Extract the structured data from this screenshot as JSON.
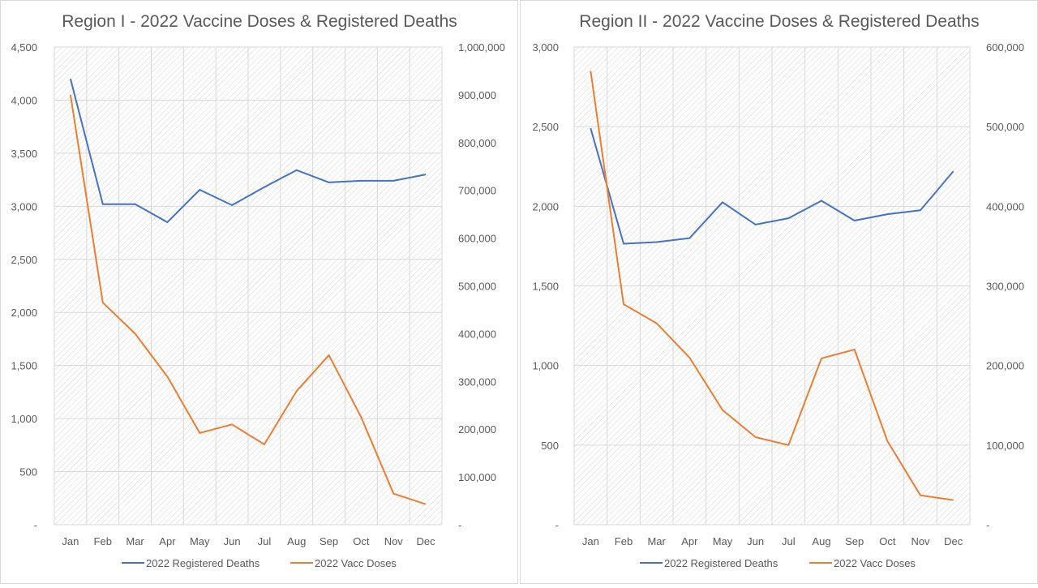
{
  "colors": {
    "deaths": "#4472C4",
    "doses": "#ED7D31",
    "title": "#595959",
    "axis_text": "#595959",
    "grid": "#d9d9d9",
    "hatch": "#d0d0d0"
  },
  "chart_data": [
    {
      "type": "line",
      "title": "Region I - 2022 Vaccine Doses & Registered Deaths",
      "categories": [
        "Jan",
        "Feb",
        "Mar",
        "Apr",
        "May",
        "Jun",
        "Jul",
        "Aug",
        "Sep",
        "Oct",
        "Nov",
        "Dec"
      ],
      "left_axis": {
        "min": 0,
        "max": 4500,
        "step": 500,
        "ticks": [
          "-",
          "500",
          "1,000",
          "1,500",
          "2,000",
          "2,500",
          "3,000",
          "3,500",
          "4,000",
          "4,500"
        ]
      },
      "right_axis": {
        "min": 0,
        "max": 1000000,
        "step": 100000,
        "ticks": [
          "-",
          "100,000",
          "200,000",
          "300,000",
          "400,000",
          "500,000",
          "600,000",
          "700,000",
          "800,000",
          "900,000",
          "1,000,000"
        ]
      },
      "series": [
        {
          "name": "2022 Registered Deaths",
          "axis": "left",
          "color": "#4472C4",
          "values": [
            4200,
            3020,
            3020,
            2850,
            3155,
            3010,
            3180,
            3340,
            3225,
            3240,
            3240,
            3300
          ]
        },
        {
          "name": "2022 Vacc Doses",
          "axis": "right",
          "color": "#ED7D31",
          "values": [
            900000,
            465000,
            400000,
            310000,
            192000,
            210000,
            168000,
            280000,
            355000,
            225000,
            65000,
            43000
          ]
        }
      ],
      "legend_position": "bottom",
      "grid": true
    },
    {
      "type": "line",
      "title": "Region II - 2022 Vaccine Doses & Registered Deaths",
      "categories": [
        "Jan",
        "Feb",
        "Mar",
        "Apr",
        "May",
        "Jun",
        "Jul",
        "Aug",
        "Sep",
        "Oct",
        "Nov",
        "Dec"
      ],
      "left_axis": {
        "min": 0,
        "max": 3000,
        "step": 500,
        "ticks": [
          "-",
          "500",
          "1,000",
          "1,500",
          "2,000",
          "2,500",
          "3,000"
        ]
      },
      "right_axis": {
        "min": 0,
        "max": 600000,
        "step": 100000,
        "ticks": [
          "-",
          "100,000",
          "200,000",
          "300,000",
          "400,000",
          "500,000",
          "600,000"
        ]
      },
      "series": [
        {
          "name": "2022 Registered Deaths",
          "axis": "left",
          "color": "#4472C4",
          "values": [
            2490,
            1765,
            1775,
            1800,
            2025,
            1885,
            1925,
            2035,
            1910,
            1950,
            1975,
            2220
          ]
        },
        {
          "name": "2022 Vacc Doses",
          "axis": "right",
          "color": "#ED7D31",
          "values": [
            570000,
            277000,
            253000,
            210000,
            144000,
            110000,
            100000,
            209000,
            220000,
            105000,
            37000,
            31000
          ]
        }
      ],
      "legend_position": "bottom",
      "grid": true
    }
  ]
}
